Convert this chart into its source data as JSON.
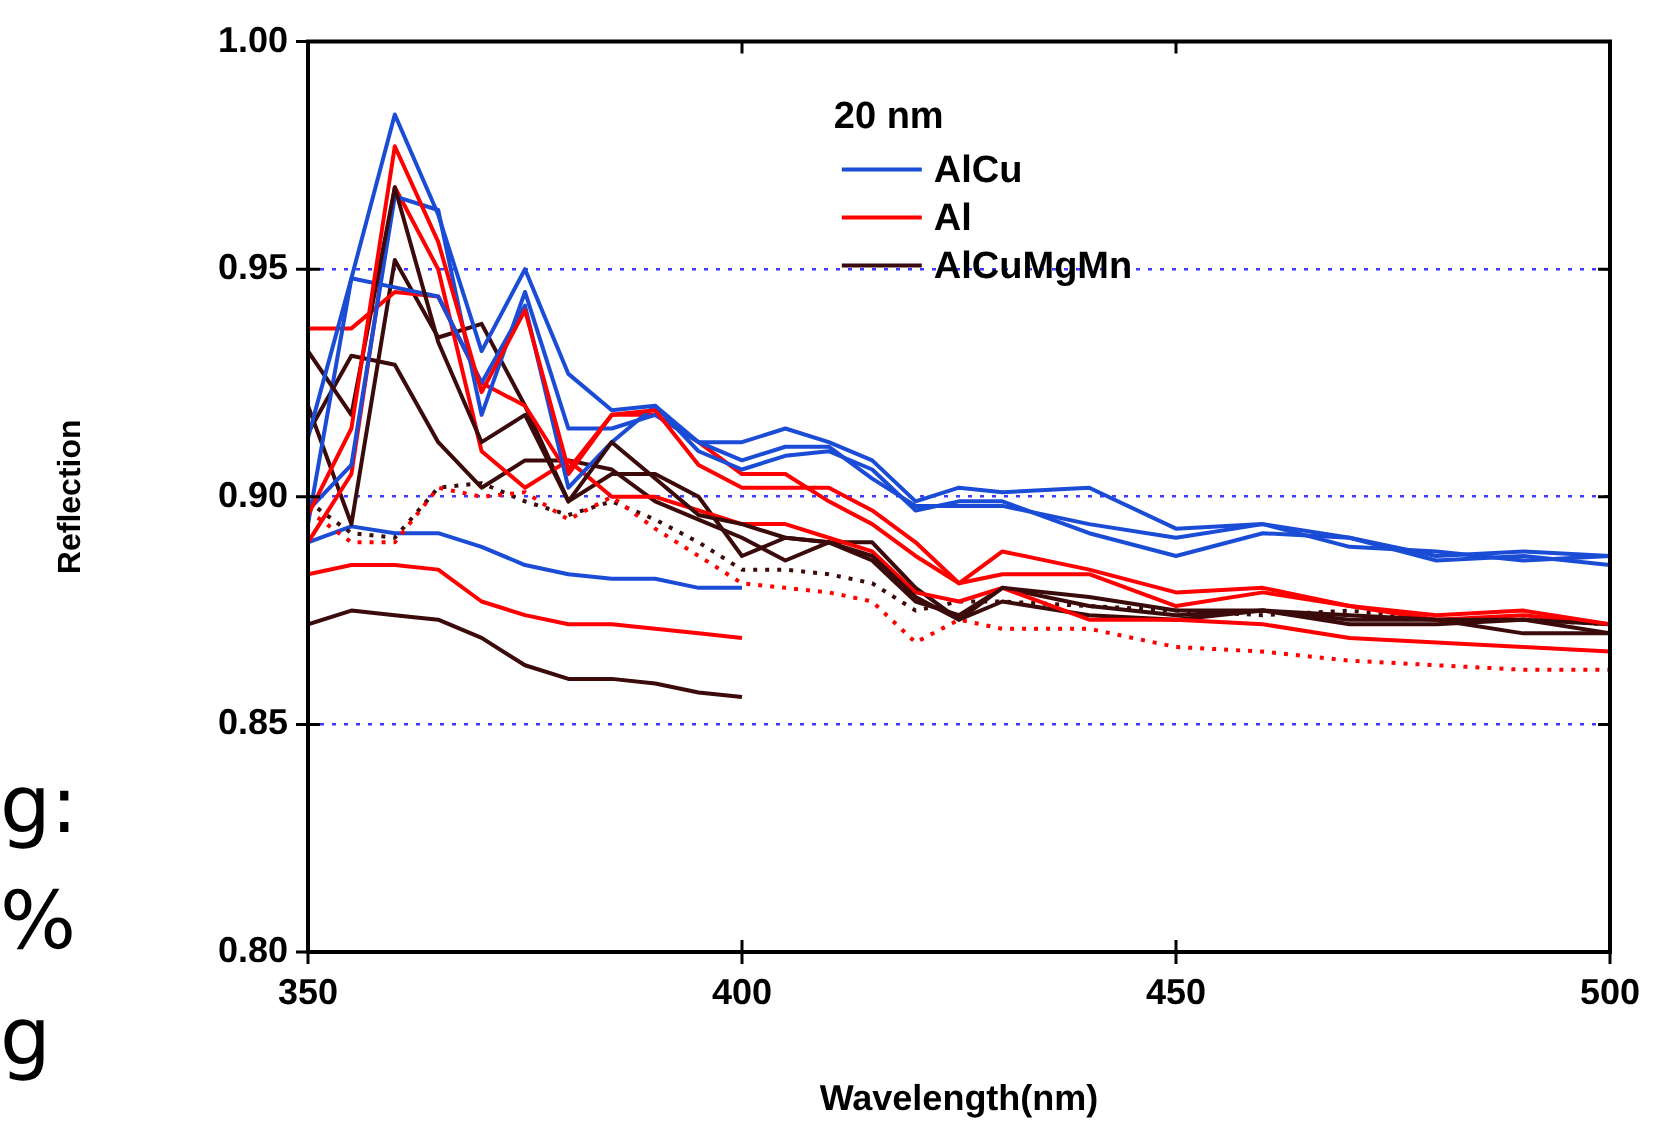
{
  "chart_data": {
    "type": "line",
    "xlabel": "Wavelength(nm)",
    "ylabel": "Reflection",
    "legend_title": "20 nm",
    "x": [
      350,
      355,
      360,
      365,
      370,
      375,
      380,
      385,
      390,
      395,
      400,
      405,
      410,
      415,
      420,
      425,
      430,
      440,
      450,
      460,
      470,
      480,
      490,
      500
    ],
    "xlim": [
      350,
      500
    ],
    "xticks": [
      350,
      400,
      450,
      500
    ],
    "ylim": [
      0.8,
      1.0
    ],
    "yticks": [
      {
        "value": 0.8,
        "label": "0.80"
      },
      {
        "value": 0.85,
        "label": "0.85"
      },
      {
        "value": 0.9,
        "label": "0.90"
      },
      {
        "value": 0.95,
        "label": "0.95"
      },
      {
        "value": 1.0,
        "label": "1.00"
      }
    ],
    "grid": "y",
    "legend": "top",
    "marker": "none",
    "line_style": "solid",
    "annotations": [
      "g:",
      "%",
      "g"
    ],
    "series": [
      {
        "name": "AlCu",
        "color": "#1a4cd6",
        "values": [
          0.913,
          0.948,
          0.984,
          0.962,
          0.932,
          0.95,
          0.927,
          0.919,
          0.92,
          0.912,
          0.912,
          0.915,
          0.912,
          0.908,
          0.899,
          0.902,
          0.901,
          0.902,
          0.893,
          0.894,
          0.891,
          0.887,
          0.888,
          0.887
        ]
      },
      {
        "name": "Al",
        "color": "#ff0000",
        "values": [
          0.896,
          0.915,
          0.977,
          0.956,
          0.923,
          0.941,
          0.906,
          0.918,
          0.919,
          0.907,
          0.902,
          0.902,
          0.902,
          0.897,
          0.89,
          0.881,
          0.888,
          0.884,
          0.879,
          0.88,
          0.876,
          0.874,
          0.875,
          0.872
        ]
      },
      {
        "name": "AlCuMgMn",
        "color": "#3b0a0a",
        "values": [
          0.932,
          0.918,
          0.968,
          0.934,
          0.912,
          0.918,
          0.899,
          0.912,
          0.904,
          0.896,
          0.894,
          0.891,
          0.89,
          0.887,
          0.878,
          0.873,
          0.88,
          0.878,
          0.875,
          0.875,
          0.874,
          0.873,
          0.873,
          0.872
        ]
      },
      {
        "color": "#1a4cd6",
        "values": [
          0.897,
          0.907,
          0.966,
          0.963,
          0.918,
          0.945,
          0.915,
          0.915,
          0.918,
          0.912,
          0.908,
          0.911,
          0.911,
          0.904,
          0.898,
          0.898,
          0.898,
          0.894,
          0.891,
          0.894,
          0.889,
          0.888,
          0.886,
          0.887
        ]
      },
      {
        "color": "#1a4cd6",
        "values": [
          0.894,
          0.948,
          0.946,
          0.944,
          0.925,
          0.942,
          0.902,
          0.912,
          0.92,
          0.91,
          0.906,
          0.909,
          0.91,
          0.906,
          0.897,
          0.899,
          0.899,
          0.892,
          0.887,
          0.892,
          0.891,
          0.886,
          0.887,
          0.885
        ]
      },
      {
        "color": "#ff0000",
        "values": [
          0.937,
          0.937,
          0.945,
          0.944,
          0.925,
          0.92,
          0.905,
          0.918,
          0.918,
          0.912,
          0.905,
          0.905,
          0.899,
          0.894,
          0.887,
          0.881,
          0.883,
          0.883,
          0.876,
          0.879,
          0.876,
          0.873,
          0.874,
          0.872
        ]
      },
      {
        "color": "#ff0000",
        "values": [
          0.89,
          0.905,
          0.968,
          0.95,
          0.91,
          0.902,
          0.908,
          0.9,
          0.9,
          0.897,
          0.894,
          0.894,
          0.891,
          0.888,
          0.879,
          0.877,
          0.88,
          0.873,
          0.873,
          0.872,
          0.869,
          0.868,
          0.867,
          0.866
        ]
      },
      {
        "color": "#3b0a0a",
        "values": [
          0.92,
          0.894,
          0.952,
          0.935,
          0.938,
          0.92,
          0.899,
          0.905,
          0.905,
          0.9,
          0.887,
          0.891,
          0.89,
          0.886,
          0.877,
          0.874,
          0.88,
          0.876,
          0.874,
          0.875,
          0.872,
          0.872,
          0.873,
          0.87
        ]
      },
      {
        "color": "#3b0a0a",
        "values": [
          0.914,
          0.931,
          0.929,
          0.912,
          0.902,
          0.908,
          0.908,
          0.906,
          0.899,
          0.895,
          0.891,
          0.886,
          0.89,
          0.89,
          0.88,
          0.873,
          0.877,
          0.874,
          0.873,
          0.875,
          0.873,
          0.873,
          0.87,
          0.87
        ]
      },
      {
        "color": "#ff0000",
        "line_style": "dotted",
        "values": [
          0.897,
          0.89,
          0.89,
          0.902,
          0.9,
          0.901,
          0.895,
          0.9,
          0.893,
          0.887,
          0.881,
          0.88,
          0.879,
          0.877,
          0.868,
          0.873,
          0.871,
          0.871,
          0.867,
          0.866,
          0.864,
          0.863,
          0.862,
          0.862
        ]
      },
      {
        "color": "#3b0a0a",
        "line_style": "dotted",
        "values": [
          0.899,
          0.892,
          0.891,
          0.902,
          0.903,
          0.899,
          0.896,
          0.899,
          0.895,
          0.89,
          0.884,
          0.884,
          0.883,
          0.881,
          0.875,
          0.877,
          0.877,
          0.876,
          0.875,
          0.874,
          0.875,
          0.873,
          0.873,
          0.872
        ]
      },
      {
        "color": "#1a4cd6",
        "values": [
          0.89,
          0.8935,
          0.892,
          0.892,
          0.889,
          0.885,
          0.883,
          0.882,
          0.882,
          0.88,
          0.88,
          null,
          null,
          null,
          null,
          null,
          null,
          null,
          null,
          null,
          null,
          null,
          null,
          null
        ]
      },
      {
        "color": "#ff0000",
        "values": [
          0.883,
          0.885,
          0.885,
          0.884,
          0.877,
          0.874,
          0.872,
          0.872,
          0.871,
          0.87,
          0.869,
          null,
          null,
          null,
          null,
          null,
          null,
          null,
          null,
          null,
          null,
          null,
          null,
          null
        ]
      },
      {
        "color": "#3b0a0a",
        "values": [
          0.872,
          0.875,
          0.874,
          0.873,
          0.869,
          0.863,
          0.86,
          0.86,
          0.859,
          0.857,
          0.856,
          null,
          null,
          null,
          null,
          null,
          null,
          null,
          null,
          null,
          null,
          null,
          null,
          null
        ]
      }
    ]
  }
}
